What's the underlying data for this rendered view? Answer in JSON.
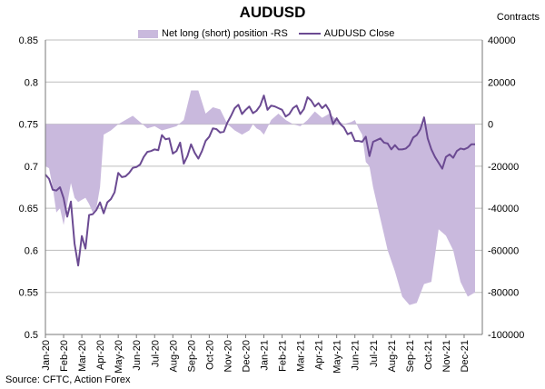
{
  "chart_data": {
    "type": "line",
    "title": "AUDUSD",
    "right_axis_title": "Contracts",
    "source": "Source: CFTC, Action Forex",
    "legend": {
      "area_label": "Net long (short) position -RS",
      "line_label": "AUDUSD Close"
    },
    "colors": {
      "area": "#c9b9dd",
      "line": "#6b4a92",
      "grid": "#bdbdbd"
    },
    "ylim_left": [
      0.5,
      0.85
    ],
    "ylim_right": [
      -100000,
      40000
    ],
    "left_ticks": [
      "0.85",
      "0.8",
      "0.75",
      "0.7",
      "0.65",
      "0.6",
      "0.55",
      "0.5"
    ],
    "right_ticks": [
      "40000",
      "20000",
      "0",
      "-20000",
      "-40000",
      "-60000",
      "-80000",
      "-100000"
    ],
    "x_labels": [
      "Jan-20",
      "Feb-20",
      "Mar-20",
      "Apr-20",
      "May-20",
      "Jun-20",
      "Jul-20",
      "Aug-20",
      "Sep-20",
      "Oct-20",
      "Nov-20",
      "Dec-20",
      "Jan-21",
      "Feb-21",
      "Mar-21",
      "Apr-21",
      "May-21",
      "Jun-21",
      "Jul-21",
      "Aug-21",
      "Sep-21",
      "Oct-21",
      "Nov-21",
      "Dec-21"
    ],
    "series": [
      {
        "name": "Net long (short) position -RS",
        "type": "area",
        "axis": "right",
        "values": [
          -20000,
          -21000,
          -30000,
          -42000,
          -40000,
          -48000,
          -38000,
          -28000,
          -35000,
          -37000,
          -36000,
          -35000,
          -38000,
          -42000,
          -40000,
          -30000,
          -5000,
          -3000,
          0,
          2000,
          4000,
          1000,
          -2000,
          -1000,
          -3000,
          -2000,
          -1000,
          2000,
          16000,
          16000,
          5000,
          8000,
          7000,
          0,
          -3000,
          -5000,
          -3000,
          0,
          -2000,
          -3000,
          -5000,
          2000,
          5000,
          2000,
          0,
          -1000,
          2000,
          6000,
          3000,
          5000,
          2000,
          0,
          1000,
          2000,
          -2000,
          -5000,
          -18000,
          -20000,
          -30000,
          -45000,
          -60000,
          -70000,
          -82000,
          -86000,
          -85000,
          -76000,
          -75000,
          -50000,
          -53000,
          -60000,
          -75000,
          -82000,
          -80000
        ],
        "weeks": [
          0,
          1,
          2,
          3,
          4,
          5,
          6,
          7,
          8,
          9,
          10,
          11,
          12,
          13,
          14,
          15,
          16,
          18,
          20,
          22,
          24,
          26,
          28,
          30,
          32,
          34,
          36,
          38,
          40,
          42,
          44,
          46,
          48,
          50,
          52,
          54,
          56,
          57,
          58,
          59,
          60,
          62,
          64,
          66,
          68,
          70,
          72,
          74,
          76,
          78,
          80,
          82,
          84,
          85,
          86,
          87,
          88,
          89,
          90,
          92,
          94,
          96,
          98,
          100,
          102,
          104,
          106,
          108,
          110,
          112,
          114,
          116,
          118
        ]
      },
      {
        "name": "AUDUSD Close",
        "type": "line",
        "axis": "left",
        "weeks": [
          0,
          1,
          2,
          3,
          4,
          5,
          6,
          7,
          8,
          9,
          10,
          11,
          12,
          13,
          14,
          15,
          16,
          17,
          18,
          19,
          20,
          21,
          22,
          23,
          24,
          25,
          26,
          27,
          28,
          29,
          30,
          31,
          32,
          33,
          34,
          35,
          36,
          37,
          38,
          39,
          40,
          41,
          42,
          43,
          44,
          45,
          46,
          47,
          48,
          49,
          50,
          51,
          52,
          53,
          54,
          55,
          56,
          57,
          58,
          59,
          60,
          61,
          62,
          63,
          64,
          65,
          66,
          67,
          68,
          69,
          70,
          71,
          72,
          73,
          74,
          75,
          76,
          77,
          78,
          79,
          80,
          81,
          82,
          83,
          84,
          85,
          86,
          87,
          88,
          89,
          90,
          91,
          92,
          93,
          94,
          95,
          96,
          97,
          98,
          99,
          100,
          101,
          102,
          103,
          104,
          105,
          106,
          107,
          108,
          109,
          110,
          111,
          112,
          113,
          114,
          115,
          116,
          117,
          118
        ],
        "values": [
          0.69,
          0.685,
          0.672,
          0.671,
          0.675,
          0.662,
          0.64,
          0.658,
          0.608,
          0.582,
          0.617,
          0.602,
          0.642,
          0.643,
          0.648,
          0.657,
          0.644,
          0.657,
          0.661,
          0.669,
          0.692,
          0.687,
          0.688,
          0.692,
          0.698,
          0.699,
          0.702,
          0.711,
          0.717,
          0.718,
          0.72,
          0.719,
          0.737,
          0.732,
          0.733,
          0.715,
          0.718,
          0.728,
          0.703,
          0.712,
          0.726,
          0.716,
          0.709,
          0.718,
          0.73,
          0.735,
          0.745,
          0.744,
          0.74,
          0.741,
          0.752,
          0.76,
          0.769,
          0.773,
          0.762,
          0.767,
          0.771,
          0.763,
          0.766,
          0.772,
          0.784,
          0.767,
          0.772,
          0.771,
          0.769,
          0.767,
          0.759,
          0.762,
          0.769,
          0.772,
          0.762,
          0.768,
          0.782,
          0.778,
          0.771,
          0.775,
          0.769,
          0.773,
          0.766,
          0.75,
          0.757,
          0.75,
          0.746,
          0.738,
          0.74,
          0.73,
          0.73,
          0.729,
          0.735,
          0.712,
          0.729,
          0.731,
          0.733,
          0.728,
          0.727,
          0.72,
          0.725,
          0.72,
          0.72,
          0.721,
          0.725,
          0.734,
          0.737,
          0.744,
          0.758,
          0.733,
          0.72,
          0.711,
          0.704,
          0.697,
          0.711,
          0.714,
          0.71,
          0.718,
          0.721,
          0.72,
          0.722,
          0.726,
          0.726
        ]
      }
    ]
  }
}
